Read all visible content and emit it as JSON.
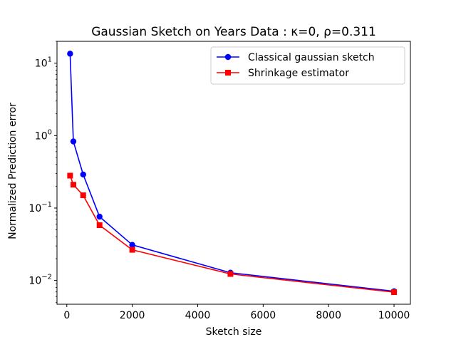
{
  "chart_data": {
    "type": "line",
    "title": "Gaussian Sketch on Years Data : κ=0, ρ=0.311",
    "xlabel": "Sketch size",
    "ylabel": "Normalized Prediction error",
    "xscale": "linear",
    "yscale": "log",
    "xlim": [
      -300,
      10500
    ],
    "ylim": [
      0.0047,
      20
    ],
    "xticks": [
      0,
      2000,
      4000,
      6000,
      8000,
      10000
    ],
    "yticks": [
      {
        "value": 0.01,
        "base": "10",
        "exp": "−2"
      },
      {
        "value": 0.1,
        "base": "10",
        "exp": "−1"
      },
      {
        "value": 1,
        "base": "10",
        "exp": "0"
      },
      {
        "value": 10,
        "base": "10",
        "exp": "1"
      }
    ],
    "grid": false,
    "legend": "top-right",
    "series": [
      {
        "name": "Classical gaussian sketch",
        "color": "#0000ff",
        "marker": "circle",
        "x": [
          100,
          200,
          500,
          1000,
          2000,
          5000,
          10000
        ],
        "y": [
          13.5,
          0.83,
          0.29,
          0.076,
          0.031,
          0.0128,
          0.0071
        ]
      },
      {
        "name": "Shrinkage estimator",
        "color": "#ff0000",
        "marker": "square",
        "x": [
          100,
          200,
          500,
          1000,
          2000,
          5000,
          10000
        ],
        "y": [
          0.28,
          0.21,
          0.15,
          0.058,
          0.0265,
          0.0123,
          0.0069
        ]
      }
    ]
  }
}
